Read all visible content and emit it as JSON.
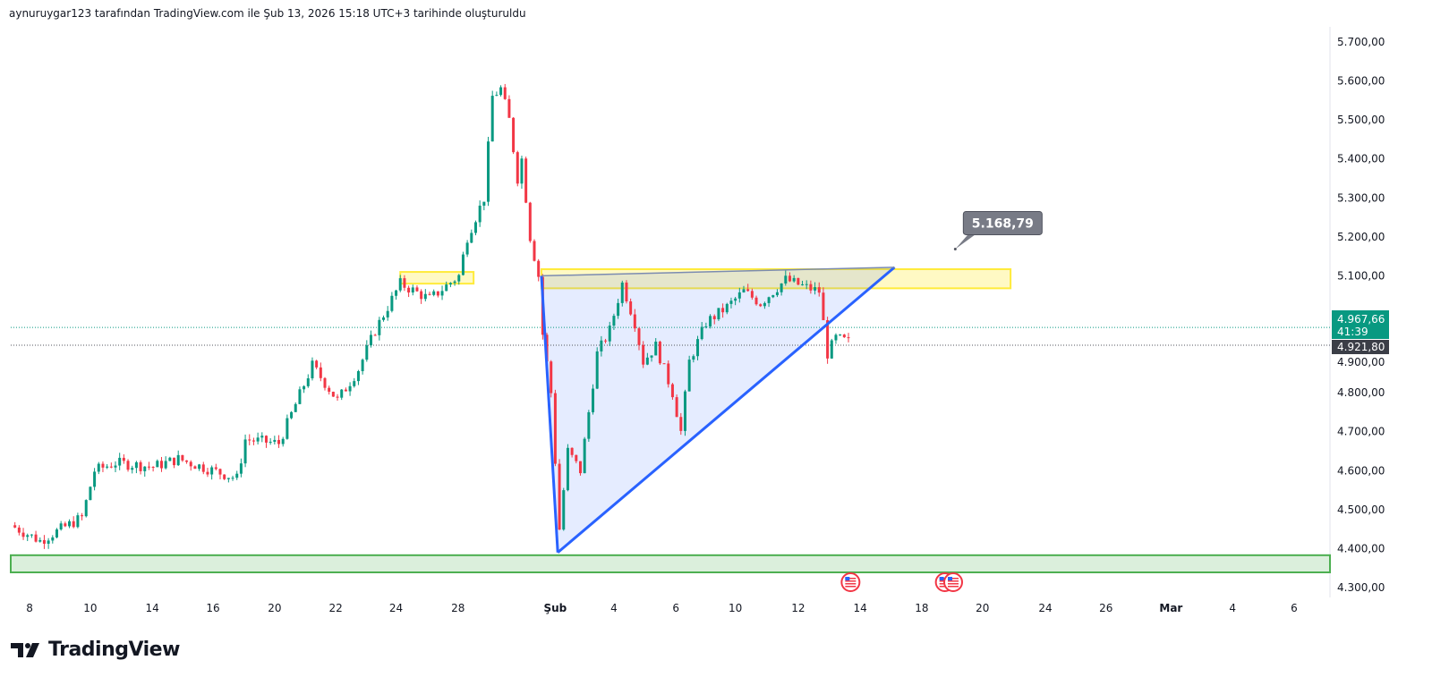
{
  "header": {
    "caption": "aynuruygar123 tarafından TradingView.com ile Şub 13, 2026 15:18 UTC+3 tarihinde oluşturuldu"
  },
  "logo": {
    "text": "TradingView"
  },
  "colors": {
    "up": "#089981",
    "down": "#f23645",
    "wick": "#131722",
    "drawing_blue": "#2962ff",
    "zone_yellow": "#ffeb3b",
    "zone_green": "#4caf50",
    "last_price": "#089981",
    "marker": "#50535e"
  },
  "chart_data": {
    "type": "candlestick",
    "title": "",
    "ylim": [
      4270,
      5740
    ],
    "price_ticks": [
      {
        "value": 5700,
        "label": "5.700,00"
      },
      {
        "value": 5600,
        "label": "5.600,00"
      },
      {
        "value": 5500,
        "label": "5.500,00"
      },
      {
        "value": 5400,
        "label": "5.400,00"
      },
      {
        "value": 5300,
        "label": "5.300,00"
      },
      {
        "value": 5200,
        "label": "5.200,00"
      },
      {
        "value": 5100,
        "label": "5.100,00"
      },
      {
        "value": 4900,
        "label": "4.900,00"
      },
      {
        "value": 4800,
        "label": "4.800,00"
      },
      {
        "value": 4700,
        "label": "4.700,00"
      },
      {
        "value": 4600,
        "label": "4.600,00"
      },
      {
        "value": 4500,
        "label": "4.500,00"
      },
      {
        "value": 4400,
        "label": "4.400,00"
      },
      {
        "value": 4300,
        "label": "4.300,00"
      }
    ],
    "time_ticks": [
      {
        "bar": 4.5,
        "label": "8"
      },
      {
        "bar": 19,
        "label": "10"
      },
      {
        "bar": 33.8,
        "label": "14"
      },
      {
        "bar": 48.3,
        "label": "16"
      },
      {
        "bar": 63,
        "label": "20"
      },
      {
        "bar": 77.6,
        "label": "22"
      },
      {
        "bar": 92,
        "label": "24"
      },
      {
        "bar": 106.8,
        "label": "28"
      },
      {
        "bar": 130,
        "label": "Şub",
        "bold": true
      },
      {
        "bar": 144,
        "label": "4"
      },
      {
        "bar": 158.8,
        "label": "6"
      },
      {
        "bar": 173,
        "label": "10"
      },
      {
        "bar": 188,
        "label": "12"
      },
      {
        "bar": 202.8,
        "label": "14"
      },
      {
        "bar": 217.5,
        "label": "18"
      },
      {
        "bar": 232,
        "label": "20"
      },
      {
        "bar": 247,
        "label": "24"
      },
      {
        "bar": 261.5,
        "label": "26"
      },
      {
        "bar": 277,
        "label": "Mar",
        "bold": true
      },
      {
        "bar": 291.7,
        "label": "4"
      },
      {
        "bar": 306.4,
        "label": "6"
      }
    ],
    "price_path": [
      [
        0,
        4460
      ],
      [
        7,
        4420
      ],
      [
        17,
        4480
      ],
      [
        20,
        4600
      ],
      [
        25,
        4620
      ],
      [
        34,
        4610
      ],
      [
        40,
        4630
      ],
      [
        54,
        4580
      ],
      [
        56,
        4680
      ],
      [
        64,
        4670
      ],
      [
        72,
        4870
      ],
      [
        78,
        4780
      ],
      [
        83,
        4860
      ],
      [
        87,
        4960
      ],
      [
        93,
        5080
      ],
      [
        100,
        5040
      ],
      [
        107,
        5100
      ],
      [
        109,
        5200
      ],
      [
        113,
        5300
      ],
      [
        115,
        5560
      ],
      [
        117,
        5580
      ],
      [
        119,
        5500
      ],
      [
        121,
        5350
      ],
      [
        122,
        5400
      ],
      [
        124,
        5200
      ],
      [
        126,
        5100
      ],
      [
        127,
        4950
      ],
      [
        129,
        4800
      ],
      [
        131,
        4450
      ],
      [
        133,
        4650
      ],
      [
        136,
        4600
      ],
      [
        140,
        4900
      ],
      [
        143,
        4960
      ],
      [
        146,
        5080
      ],
      [
        149,
        4980
      ],
      [
        151,
        4880
      ],
      [
        154,
        4920
      ],
      [
        158,
        4800
      ],
      [
        160,
        4700
      ],
      [
        162,
        4880
      ],
      [
        166,
        4980
      ],
      [
        171,
        5020
      ],
      [
        175,
        5060
      ],
      [
        179,
        5030
      ],
      [
        185,
        5090
      ],
      [
        190,
        5070
      ],
      [
        193,
        5060
      ],
      [
        195,
        4900
      ],
      [
        197,
        4940
      ],
      [
        200,
        4930
      ]
    ],
    "last_price": {
      "value": 4967.66,
      "label": "4.967,66",
      "countdown": "41:39"
    },
    "marker_price": {
      "value": 4921.8,
      "label": "4.921,80"
    },
    "drawings": {
      "zone_left": {
        "bars": [
          93,
          110.5
        ],
        "prices": [
          5080,
          5110
        ]
      },
      "zone_right": {
        "bars": [
          126.7,
          238.7
        ],
        "prices": [
          5068,
          5117
        ]
      },
      "support_zone": {
        "prices": [
          4339,
          4383
        ]
      },
      "triangle": [
        [
          126.7,
          5100
        ],
        [
          130.6,
          4390
        ],
        [
          211,
          5122
        ]
      ],
      "callout": {
        "bar": 225.5,
        "price": 5168.79,
        "label": "5.168,79"
      }
    },
    "events": [
      {
        "bar": 200.5
      },
      {
        "bar": 223
      },
      {
        "bar": 225
      }
    ]
  }
}
